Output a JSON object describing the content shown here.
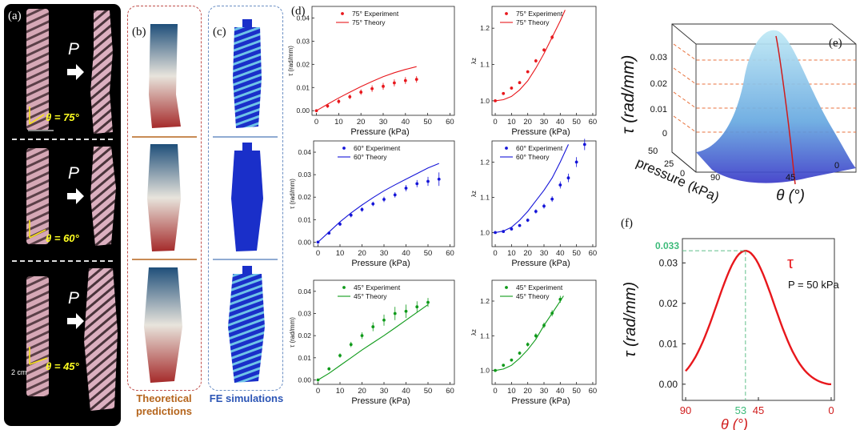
{
  "panel_labels": {
    "a": "(a)",
    "b": "(b)",
    "c": "(c)",
    "d": "(d)",
    "e": "(e)",
    "f": "(f)"
  },
  "panel_a": {
    "p_symbol": "P",
    "theta_labels": [
      "θ = 75°",
      "θ = 60°",
      "θ = 45°"
    ],
    "scale_bar": "2 cm"
  },
  "captions": {
    "theory": "Theoretical predictions",
    "fe": "FE simulations"
  },
  "colors": {
    "red": "#e8171c",
    "blue": "#1515d8",
    "green": "#0f9a1a",
    "brown": "#b5651d",
    "fe_blue": "#2b55b5"
  },
  "chart_data": [
    {
      "id": "d-tau-75",
      "type": "scatter",
      "xlabel": "Pressure (kPa)",
      "ylabel": "τ (rad/mm)",
      "xlim": [
        -2,
        62
      ],
      "ylim": [
        -0.002,
        0.045
      ],
      "xticks": [
        0,
        10,
        20,
        30,
        40,
        50,
        60
      ],
      "yticks": [
        0,
        0.01,
        0.02,
        0.03,
        0.04
      ],
      "legend": [
        "75° Experiment",
        "75° Theory"
      ],
      "color": "#e8171c",
      "experiment": {
        "x": [
          0,
          5,
          10,
          15,
          20,
          25,
          30,
          35,
          40,
          45
        ],
        "y": [
          0,
          0.002,
          0.004,
          0.006,
          0.008,
          0.0095,
          0.0105,
          0.012,
          0.013,
          0.0135
        ],
        "err": [
          0,
          0.0008,
          0.001,
          0.001,
          0.0012,
          0.0014,
          0.0015,
          0.0015,
          0.0015,
          0.0014
        ]
      },
      "theory": {
        "x": [
          0,
          5,
          10,
          15,
          20,
          25,
          30,
          35,
          40,
          45
        ],
        "y": [
          0,
          0.0028,
          0.0055,
          0.008,
          0.0104,
          0.0126,
          0.0147,
          0.0164,
          0.0178,
          0.019
        ]
      }
    },
    {
      "id": "d-lambda-75",
      "type": "scatter",
      "xlabel": "Pressure (kPa)",
      "ylabel": "λz",
      "xlim": [
        -2,
        62
      ],
      "ylim": [
        0.96,
        1.26
      ],
      "xticks": [
        0,
        10,
        20,
        30,
        40,
        50,
        60
      ],
      "yticks": [
        1.0,
        1.1,
        1.2
      ],
      "legend": [
        "75° Experiment",
        "75° Theory"
      ],
      "color": "#e8171c",
      "experiment": {
        "x": [
          0,
          5,
          10,
          15,
          20,
          25,
          30,
          35
        ],
        "y": [
          1.0,
          1.02,
          1.035,
          1.05,
          1.08,
          1.11,
          1.14,
          1.175
        ],
        "err": [
          0,
          0.003,
          0.004,
          0.004,
          0.004,
          0.005,
          0.005,
          0.006
        ]
      },
      "theory": {
        "x": [
          0,
          5,
          10,
          15,
          20,
          25,
          30,
          35,
          40,
          43
        ],
        "y": [
          1.0,
          1.003,
          1.012,
          1.03,
          1.055,
          1.09,
          1.13,
          1.175,
          1.22,
          1.25
        ]
      }
    },
    {
      "id": "d-tau-60",
      "type": "scatter",
      "xlabel": "Pressure (kPa)",
      "ylabel": "τ (rad/mm)",
      "xlim": [
        -2,
        62
      ],
      "ylim": [
        -0.002,
        0.045
      ],
      "xticks": [
        0,
        10,
        20,
        30,
        40,
        50,
        60
      ],
      "yticks": [
        0,
        0.01,
        0.02,
        0.03,
        0.04
      ],
      "legend": [
        "60° Experiment",
        "60° Theory"
      ],
      "color": "#1515d8",
      "experiment": {
        "x": [
          0,
          5,
          10,
          15,
          20,
          25,
          30,
          35,
          40,
          45,
          50,
          55
        ],
        "y": [
          0,
          0.004,
          0.008,
          0.012,
          0.0145,
          0.017,
          0.019,
          0.021,
          0.024,
          0.026,
          0.027,
          0.028
        ],
        "err": [
          0,
          0.0006,
          0.0008,
          0.001,
          0.001,
          0.001,
          0.0012,
          0.0012,
          0.0014,
          0.0016,
          0.002,
          0.003
        ]
      },
      "theory": {
        "x": [
          0,
          5,
          10,
          15,
          20,
          25,
          30,
          35,
          40,
          45,
          50,
          55
        ],
        "y": [
          0,
          0.0045,
          0.009,
          0.013,
          0.0165,
          0.0198,
          0.0228,
          0.0255,
          0.028,
          0.0305,
          0.033,
          0.035
        ]
      }
    },
    {
      "id": "d-lambda-60",
      "type": "scatter",
      "xlabel": "Pressure (kPa)",
      "ylabel": "λz",
      "xlim": [
        -2,
        62
      ],
      "ylim": [
        0.96,
        1.26
      ],
      "xticks": [
        0,
        10,
        20,
        30,
        40,
        50,
        60
      ],
      "yticks": [
        1.0,
        1.1,
        1.2
      ],
      "legend": [
        "60° Experiment",
        "60° Theory"
      ],
      "color": "#1515d8",
      "experiment": {
        "x": [
          0,
          5,
          10,
          15,
          20,
          25,
          30,
          35,
          40,
          45,
          50,
          55
        ],
        "y": [
          1.0,
          1.003,
          1.01,
          1.02,
          1.035,
          1.06,
          1.075,
          1.095,
          1.135,
          1.155,
          1.2,
          1.25
        ],
        "err": [
          0,
          0.003,
          0.003,
          0.004,
          0.005,
          0.006,
          0.007,
          0.008,
          0.01,
          0.012,
          0.014,
          0.016
        ]
      },
      "theory": {
        "x": [
          0,
          5,
          10,
          15,
          20,
          25,
          30,
          35,
          40,
          45
        ],
        "y": [
          1.0,
          1.004,
          1.015,
          1.035,
          1.06,
          1.09,
          1.12,
          1.155,
          1.2,
          1.25
        ]
      }
    },
    {
      "id": "d-tau-45",
      "type": "scatter",
      "xlabel": "Pressure (kPa)",
      "ylabel": "τ (rad/mm)",
      "xlim": [
        -2,
        62
      ],
      "ylim": [
        -0.002,
        0.045
      ],
      "xticks": [
        0,
        10,
        20,
        30,
        40,
        50,
        60
      ],
      "yticks": [
        0,
        0.01,
        0.02,
        0.03,
        0.04
      ],
      "legend": [
        "45° Experiment",
        "45° Theory"
      ],
      "color": "#0f9a1a",
      "experiment": {
        "x": [
          0,
          5,
          10,
          15,
          20,
          25,
          30,
          35,
          40,
          45,
          50
        ],
        "y": [
          0,
          0.005,
          0.011,
          0.016,
          0.02,
          0.024,
          0.027,
          0.03,
          0.031,
          0.033,
          0.035
        ],
        "err": [
          0,
          0.0008,
          0.001,
          0.0012,
          0.0015,
          0.002,
          0.0025,
          0.003,
          0.003,
          0.0025,
          0.002
        ]
      },
      "theory": {
        "x": [
          0,
          5,
          10,
          15,
          20,
          25,
          30,
          35,
          40,
          45,
          50
        ],
        "y": [
          0,
          0.003,
          0.0065,
          0.01,
          0.0135,
          0.0168,
          0.02,
          0.0235,
          0.027,
          0.0305,
          0.034
        ]
      }
    },
    {
      "id": "d-lambda-45",
      "type": "scatter",
      "xlabel": "Pressure (kPa)",
      "ylabel": "λz",
      "xlim": [
        -2,
        62
      ],
      "ylim": [
        0.96,
        1.26
      ],
      "xticks": [
        0,
        10,
        20,
        30,
        40,
        50,
        60
      ],
      "yticks": [
        1.0,
        1.1,
        1.2
      ],
      "legend": [
        "45° Experiment",
        "45° Theory"
      ],
      "color": "#0f9a1a",
      "experiment": {
        "x": [
          0,
          5,
          10,
          15,
          20,
          25,
          30,
          35,
          40
        ],
        "y": [
          1.0,
          1.015,
          1.03,
          1.05,
          1.075,
          1.1,
          1.13,
          1.165,
          1.205
        ],
        "err": [
          0,
          0.003,
          0.004,
          0.005,
          0.006,
          0.007,
          0.008,
          0.009,
          0.01
        ]
      },
      "theory": {
        "x": [
          0,
          5,
          10,
          15,
          20,
          25,
          30,
          35,
          40,
          42
        ],
        "y": [
          1.0,
          1.004,
          1.015,
          1.035,
          1.06,
          1.09,
          1.13,
          1.165,
          1.2,
          1.215
        ]
      }
    },
    {
      "id": "e-surface",
      "type": "area",
      "xlabel": "θ (°)",
      "ylabel": "pressure (kPa)",
      "zlabel": "τ (rad/mm)",
      "theta_ticks": [
        "90",
        "45",
        "0"
      ],
      "pressure_ticks": [
        "50",
        "25",
        "0"
      ],
      "z_ticks": [
        "0",
        "0.01",
        "0.02",
        "0.03"
      ],
      "zlim": [
        0,
        0.036
      ],
      "grid": true
    },
    {
      "id": "f-curve",
      "type": "line",
      "xlabel": "θ (°)",
      "ylabel": "τ (rad/mm)",
      "xlim": [
        92,
        -2
      ],
      "ylim": [
        -0.004,
        0.036
      ],
      "xticks": [
        90,
        45,
        0
      ],
      "yticks": [
        0,
        0.01,
        0.02,
        0.03
      ],
      "y_tick_labels": [
        "0.00",
        "0.01",
        "0.02",
        "0.03"
      ],
      "series_label": "τ",
      "annotation": "P = 50 kPa",
      "peak": {
        "theta": 53,
        "tau": 0.033
      },
      "peak_theta_label": "53",
      "peak_tau_label": "0.033"
    }
  ]
}
